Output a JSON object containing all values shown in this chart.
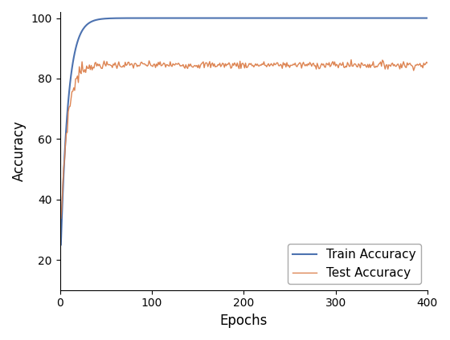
{
  "title": "",
  "xlabel": "Epochs",
  "ylabel": "Accuracy",
  "xlim": [
    0,
    400
  ],
  "ylim": [
    10,
    102
  ],
  "train_color": "#4c72b0",
  "test_color": "#dd8452",
  "train_label": "Train Accuracy",
  "test_label": "Test Accuracy",
  "n_epochs": 400,
  "train_start": 15.0,
  "train_end": 100.0,
  "train_tau": 8.0,
  "test_start": 23.0,
  "test_plateau": 84.5,
  "test_tau": 7.0,
  "noise_std_early": 1.5,
  "noise_std_late": 0.6,
  "noise_cutoff": 25,
  "legend_loc": "lower right",
  "figsize": [
    5.6,
    4.24
  ],
  "dpi": 100,
  "xticks": [
    0,
    100,
    200,
    300,
    400
  ],
  "yticks": [
    20,
    40,
    60,
    80,
    100
  ]
}
